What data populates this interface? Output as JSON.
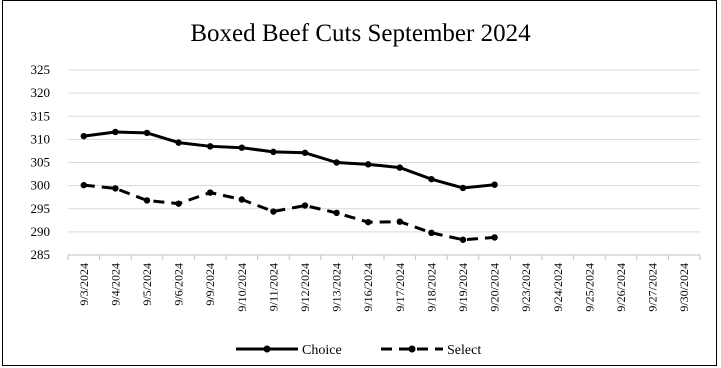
{
  "chart_data": {
    "type": "line",
    "title": "Boxed Beef Cuts September 2024",
    "xlabel": "",
    "ylabel": "",
    "ylim": [
      285,
      325
    ],
    "yticks": [
      285,
      290,
      295,
      300,
      305,
      310,
      315,
      320,
      325
    ],
    "grid": true,
    "legend_position": "bottom",
    "categories": [
      "9/3/2024",
      "9/4/2024",
      "9/5/2024",
      "9/6/2024",
      "9/9/2024",
      "9/10/2024",
      "9/11/2024",
      "9/12/2024",
      "9/13/2024",
      "9/16/2024",
      "9/17/2024",
      "9/18/2024",
      "9/19/2024",
      "9/20/2024",
      "9/23/2024",
      "9/24/2024",
      "9/25/2024",
      "9/26/2024",
      "9/27/2024",
      "9/30/2024"
    ],
    "series": [
      {
        "name": "Choice",
        "style": "solid",
        "color": "#000000",
        "values": [
          310.7,
          311.6,
          311.4,
          309.3,
          308.5,
          308.2,
          307.3,
          307.1,
          305.0,
          304.6,
          303.9,
          301.4,
          299.5,
          300.2,
          null,
          null,
          null,
          null,
          null,
          null
        ]
      },
      {
        "name": "Select",
        "style": "dashed",
        "color": "#000000",
        "values": [
          300.1,
          299.4,
          296.8,
          296.1,
          298.5,
          297.0,
          294.4,
          295.7,
          294.1,
          292.1,
          292.2,
          289.8,
          288.3,
          288.8,
          null,
          null,
          null,
          null,
          null,
          null
        ]
      }
    ]
  }
}
